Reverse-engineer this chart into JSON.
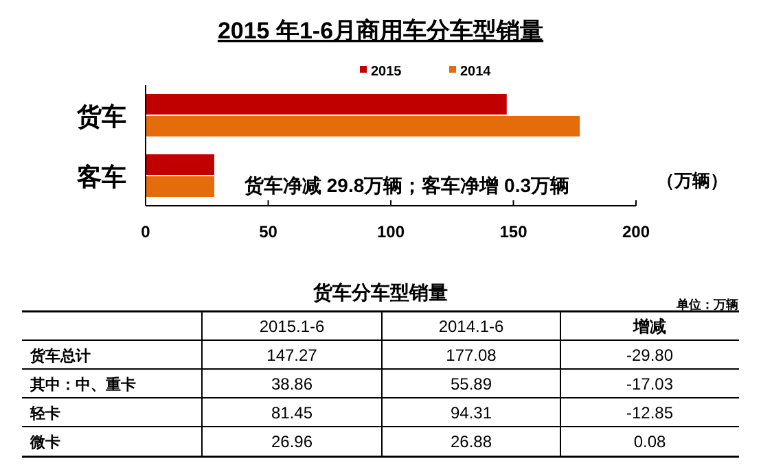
{
  "chart_data": [
    {
      "type": "bar",
      "orientation": "horizontal",
      "title": "2015 年1-6月商用车分车型销量",
      "xlabel": "（万辆）",
      "categories": [
        "货车",
        "客车"
      ],
      "series": [
        {
          "name": "2015",
          "color": "#c00000",
          "values": [
            147.27,
            28
          ]
        },
        {
          "name": "2014",
          "color": "#e46c0a",
          "values": [
            177.08,
            28
          ]
        }
      ],
      "xlim": [
        0,
        200
      ],
      "xticks": [
        0,
        50,
        100,
        150,
        200
      ],
      "grid": false,
      "legend": "top",
      "annotations": [
        "货车净减 29.8万辆；客车净增 0.3万辆"
      ]
    },
    {
      "type": "other",
      "title": "货车分车型销量",
      "annotations": [
        "单位：万辆"
      ],
      "categories": [
        "2015.1-6",
        "2014.1-6",
        "增减"
      ],
      "y_categories": [
        "货车总计",
        "其中：中、重卡",
        "轻卡",
        "微卡"
      ],
      "cell_labels": [
        [
          "147.27",
          "177.08",
          "-29.80"
        ],
        [
          "38.86",
          "55.89",
          "-17.03"
        ],
        [
          "81.45",
          "94.31",
          "-12.85"
        ],
        [
          "26.96",
          "26.88",
          "0.08"
        ]
      ]
    }
  ]
}
